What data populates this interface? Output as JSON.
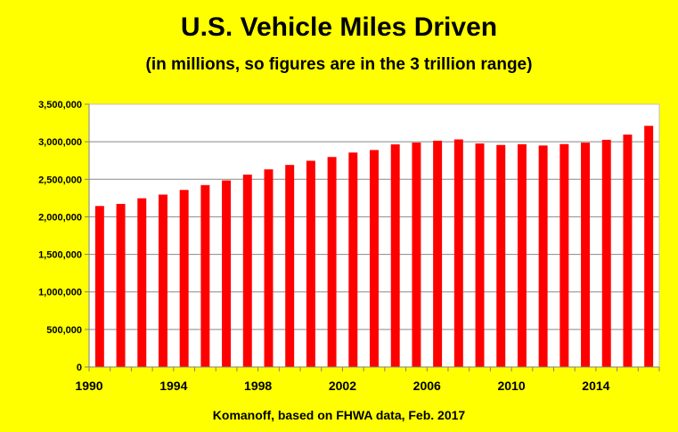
{
  "chart_data": {
    "type": "bar",
    "title": "U.S. Vehicle Miles Driven",
    "subtitle": "(in millions, so figures are in the 3 trillion range)",
    "credit": "Komanoff, based on FHWA data, Feb. 2017",
    "xlabel": "",
    "ylabel": "",
    "categories": [
      1990,
      1991,
      1992,
      1993,
      1994,
      1995,
      1996,
      1997,
      1998,
      1999,
      2000,
      2001,
      2002,
      2003,
      2004,
      2005,
      2006,
      2007,
      2008,
      2009,
      2010,
      2011,
      2012,
      2013,
      2014,
      2015,
      2016
    ],
    "values": [
      2144000,
      2172000,
      2247000,
      2296000,
      2358000,
      2423000,
      2485000,
      2562000,
      2632000,
      2691000,
      2747000,
      2797000,
      2856000,
      2890000,
      2965000,
      2989000,
      3014000,
      3031000,
      2977000,
      2957000,
      2967000,
      2950000,
      2969000,
      2988000,
      3026000,
      3095000,
      3212000
    ],
    "x_tick_labels": [
      "1990",
      "1994",
      "1998",
      "2002",
      "2006",
      "2010",
      "2014"
    ],
    "x_tick_years": [
      1990,
      1994,
      1998,
      2002,
      2006,
      2010,
      2014
    ],
    "y_ticks": [
      0,
      500000,
      1000000,
      1500000,
      2000000,
      2500000,
      3000000,
      3500000
    ],
    "y_tick_labels": [
      "0",
      "500,000",
      "1,000,000",
      "1,500,000",
      "2,000,000",
      "2,500,000",
      "3,000,000",
      "3,500,000"
    ],
    "ylim": [
      0,
      3500000
    ],
    "grid": true,
    "legend": "none",
    "colors": {
      "bar": "#FF0000",
      "background": "#FFFF00",
      "plot_background": "#FFFFFF",
      "grid": "#888888"
    }
  }
}
